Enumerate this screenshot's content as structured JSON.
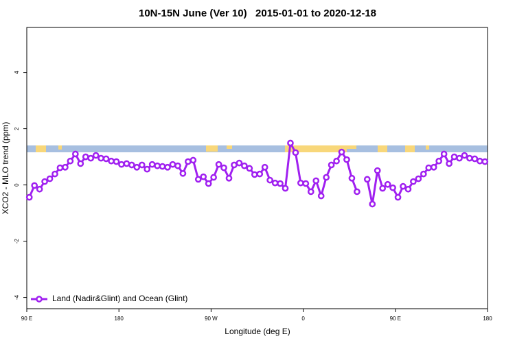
{
  "chart_data": {
    "type": "line",
    "title": "10N-15N June (Ver 10)   2015-01-01 to 2020-12-18",
    "x_label": "Longitude (deg E)",
    "y_label": "XCO2 - MLO trend (ppm)",
    "xlim": [
      90,
      540
    ],
    "ylim": [
      -4.4,
      5.6
    ],
    "xticks": [
      {
        "value": 90,
        "label": "90 E"
      },
      {
        "value": 180,
        "label": "180"
      },
      {
        "value": 270,
        "label": "90 W"
      },
      {
        "value": 360,
        "label": "0"
      },
      {
        "value": 450,
        "label": "90 E"
      },
      {
        "value": 540,
        "label": "180"
      }
    ],
    "yticks": [
      4,
      2,
      0,
      -2,
      -4
    ],
    "grid": false,
    "legend": "bottom-left",
    "x": [
      92.5,
      97.5,
      102.5,
      107.5,
      112.5,
      117.5,
      122.5,
      127.5,
      132.5,
      137.5,
      142.5,
      147.5,
      152.5,
      157.5,
      162.5,
      167.5,
      172.5,
      177.5,
      182.5,
      187.5,
      192.5,
      197.5,
      202.5,
      207.5,
      212.5,
      217.5,
      222.5,
      227.5,
      232.5,
      237.5,
      242.5,
      247.5,
      252.5,
      257.5,
      262.5,
      267.5,
      272.5,
      277.5,
      282.5,
      287.5,
      292.5,
      297.5,
      302.5,
      307.5,
      312.5,
      317.5,
      322.5,
      327.5,
      332.5,
      337.5,
      342.5,
      347.5,
      352.5,
      357.5,
      362.5,
      367.5,
      372.5,
      377.5,
      382.5,
      387.5,
      392.5,
      397.5,
      402.5,
      407.5,
      412.5,
      417.5,
      422.5,
      427.5,
      432.5,
      437.5,
      442.5,
      447.5,
      452.5,
      457.5,
      462.5,
      467.5,
      472.5,
      477.5,
      482.5,
      487.5,
      492.5,
      497.5,
      502.5,
      507.5,
      512.5,
      517.5,
      522.5,
      527.5,
      532.5,
      537.5
    ],
    "series": [
      {
        "name": "Land (Nadir&Glint) and Ocean (Glint)",
        "color": "#a020f0",
        "values": [
          -0.44,
          -0.02,
          -0.15,
          0.12,
          0.22,
          0.39,
          0.61,
          0.63,
          0.85,
          1.1,
          0.76,
          1.0,
          0.95,
          1.05,
          0.95,
          0.93,
          0.85,
          0.83,
          0.73,
          0.76,
          0.71,
          0.63,
          0.71,
          0.56,
          0.73,
          0.68,
          0.66,
          0.63,
          0.73,
          0.68,
          0.41,
          0.83,
          0.88,
          0.2,
          0.29,
          0.05,
          0.27,
          0.73,
          0.61,
          0.24,
          0.71,
          0.78,
          0.68,
          0.59,
          0.37,
          0.39,
          0.63,
          0.17,
          0.07,
          0.05,
          -0.12,
          1.49,
          1.15,
          0.07,
          0.05,
          -0.24,
          0.15,
          -0.39,
          0.27,
          0.71,
          0.85,
          1.17,
          0.9,
          0.24,
          -0.24,
          null,
          0.2,
          -0.68,
          0.51,
          -0.12,
          0.02,
          -0.1,
          -0.44,
          -0.05,
          -0.15,
          0.12,
          0.22,
          0.39,
          0.61,
          0.63,
          0.85,
          1.1,
          0.76,
          1.0,
          0.95,
          1.05,
          0.95,
          0.93,
          0.85,
          0.83
        ]
      }
    ]
  }
}
